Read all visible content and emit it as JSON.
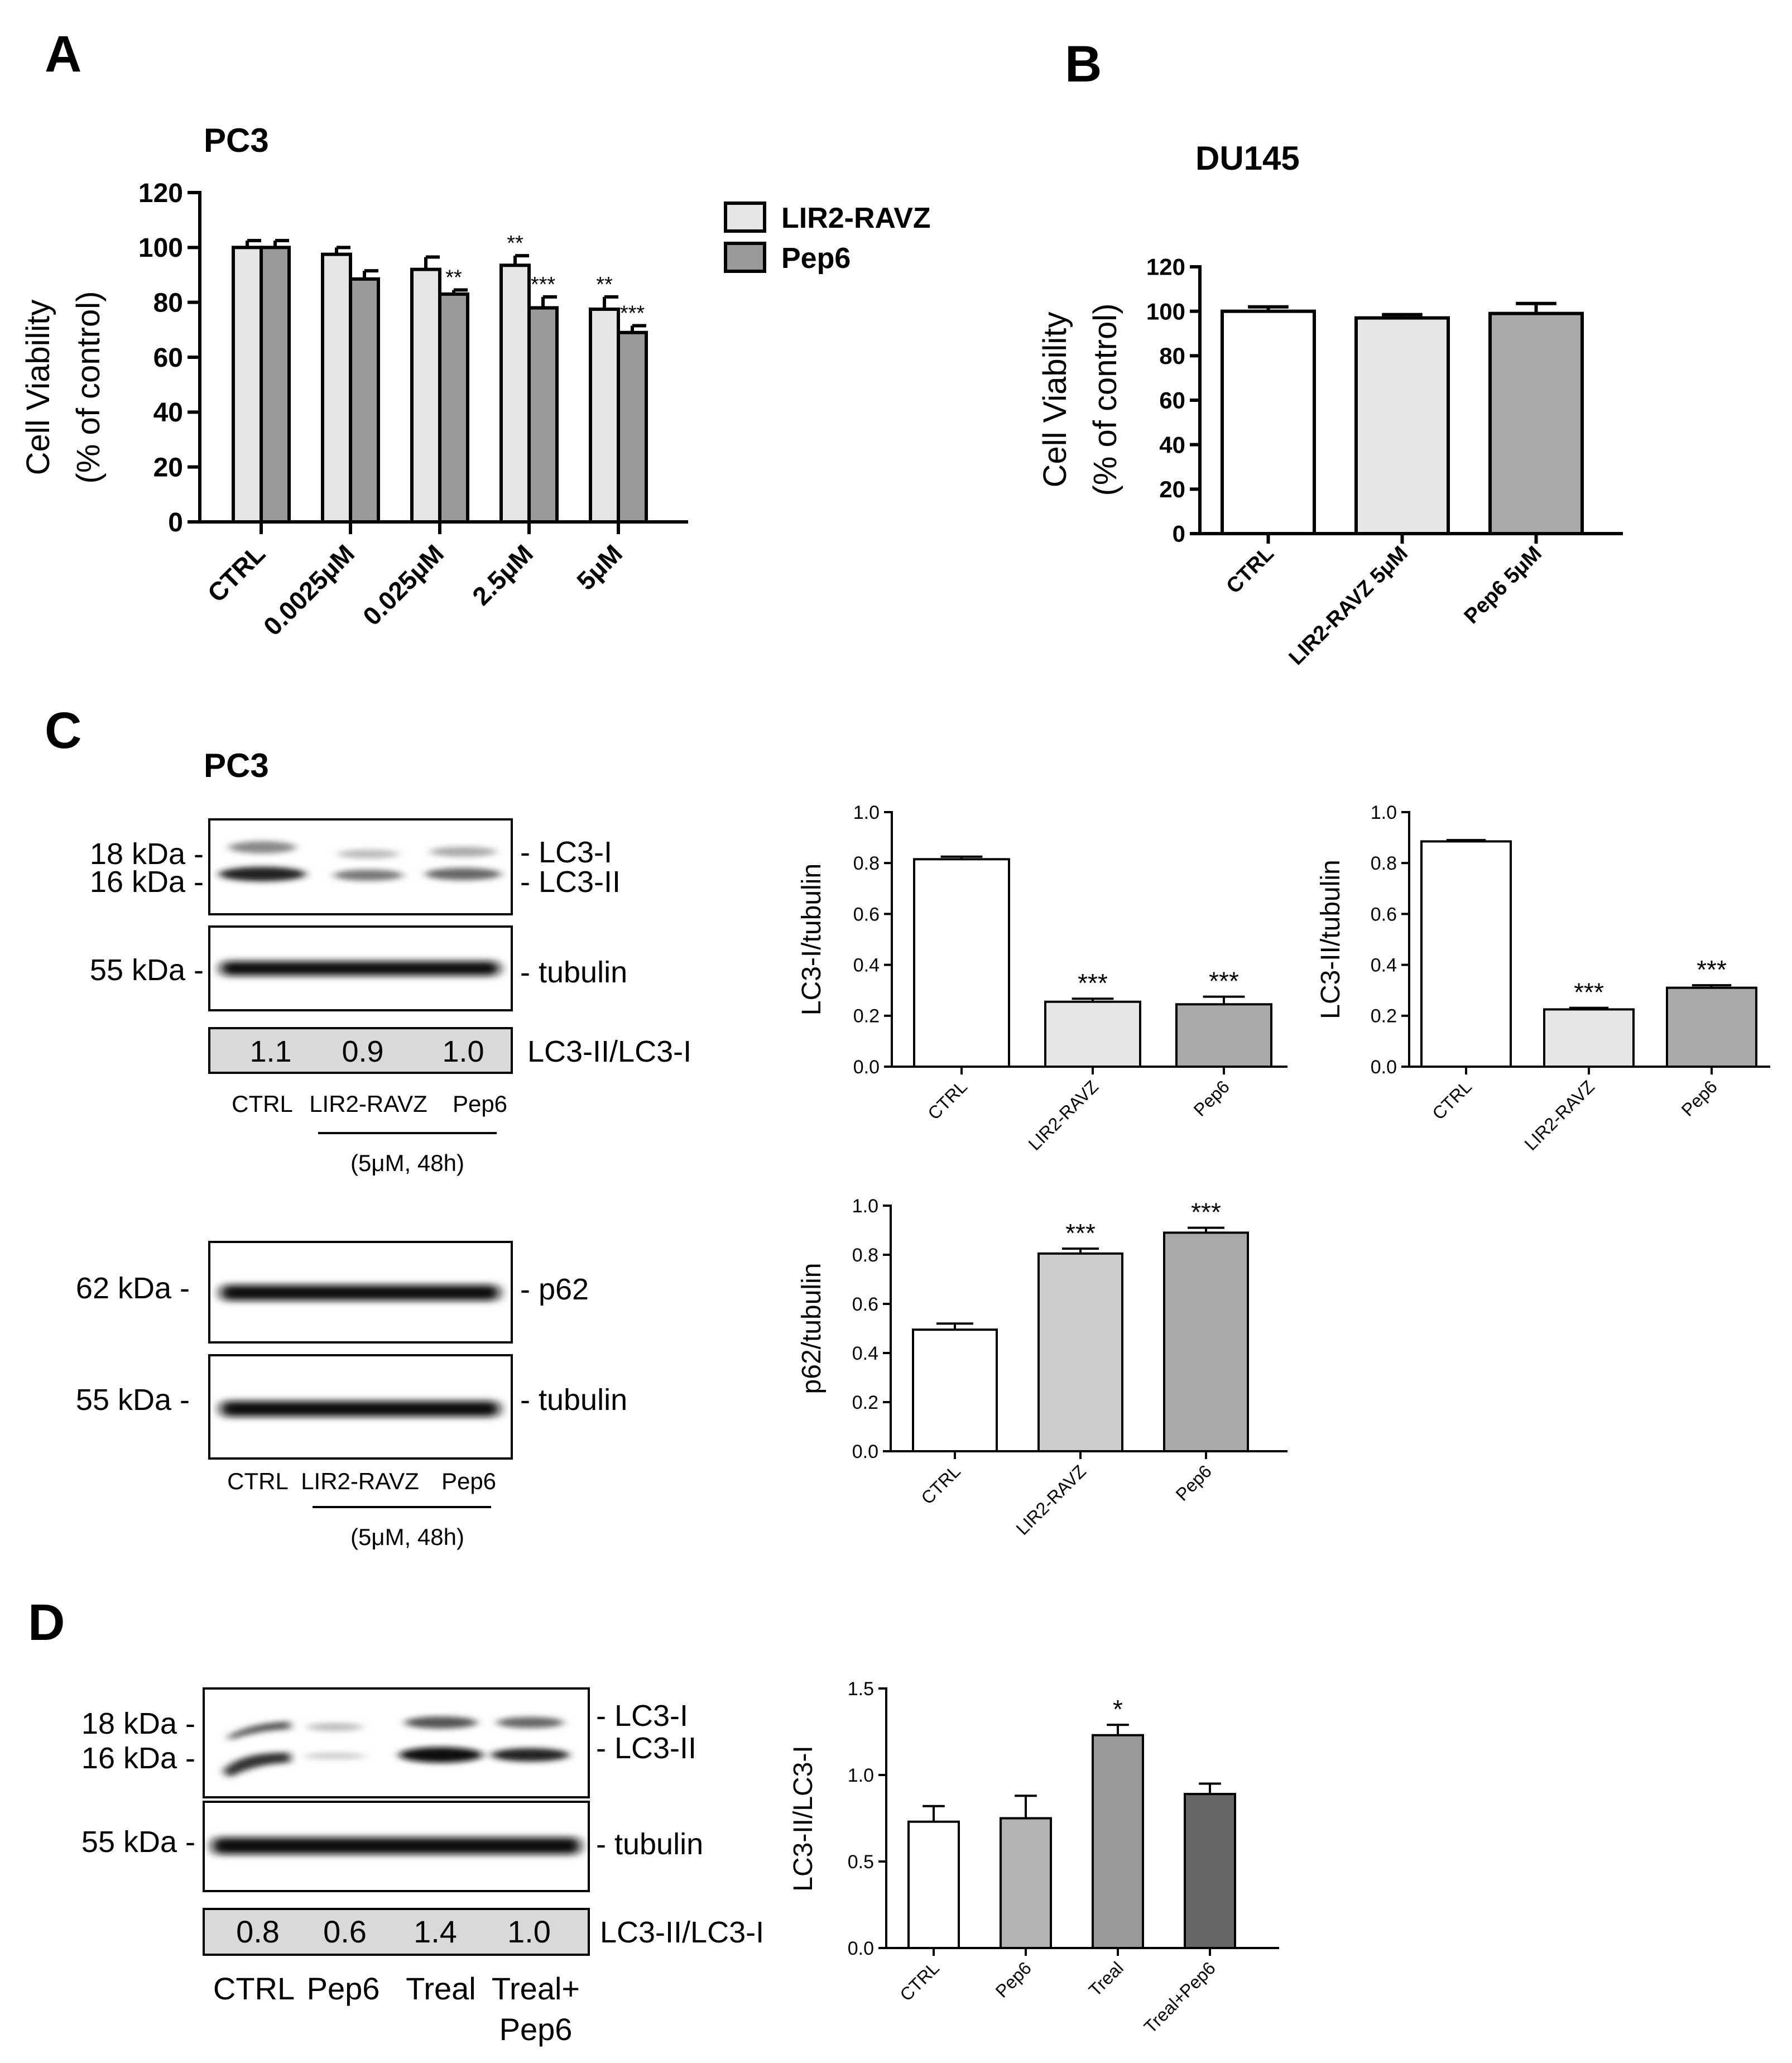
{
  "panels": {
    "A": {
      "letter": "A",
      "cell_line": "PC3",
      "ylabel_line1": "Cell Viability",
      "ylabel_line2": "(% of control)",
      "legend": [
        {
          "label": "LIR2-RAVZ",
          "color": "#e6e6e6"
        },
        {
          "label": "Pep6",
          "color": "#999999"
        }
      ]
    },
    "B": {
      "letter": "B",
      "cell_line": "DU145",
      "ylabel_line1": "Cell Viability",
      "ylabel_line2": "(% of control)"
    },
    "C": {
      "letter": "C",
      "cell_line": "PC3",
      "blot1": {
        "markers": [
          "18 kDa -",
          "16 kDa -",
          "55 kDa -"
        ],
        "bands": [
          "- LC3-I",
          "- LC3-II",
          "- tubulin"
        ],
        "ratio_values": [
          "1.1",
          "0.9",
          "1.0"
        ],
        "ratio_label": "LC3-II/LC3-I",
        "lanes": [
          "CTRL",
          "LIR2-RAVZ",
          "Pep6"
        ],
        "treatment": "(5μM, 48h)"
      },
      "blot2": {
        "markers": [
          "62 kDa -",
          "55 kDa -"
        ],
        "bands": [
          "- p62",
          "- tubulin"
        ],
        "lanes": [
          "CTRL",
          "LIR2-RAVZ",
          "Pep6"
        ],
        "treatment": "(5μM, 48h)"
      }
    },
    "D": {
      "letter": "D",
      "blot": {
        "markers": [
          "18 kDa -",
          "16 kDa -",
          "55 kDa -"
        ],
        "bands": [
          "- LC3-I",
          "- LC3-II",
          "- tubulin"
        ],
        "ratio_values": [
          "0.8",
          "0.6",
          "1.4",
          "1.0"
        ],
        "ratio_label": "LC3-II/LC3-I",
        "lanes": [
          "CTRL",
          "Pep6",
          "Treal",
          "Treal+",
          "Pep6"
        ]
      }
    }
  },
  "chart_data": [
    {
      "id": "A",
      "type": "bar",
      "title": "PC3",
      "ylabel": "Cell Viability (% of control)",
      "categories": [
        "CTRL",
        "0.0025μM",
        "0.025μM",
        "2.5μM",
        "5μM"
      ],
      "series": [
        {
          "name": "LIR2-RAVZ",
          "values": [
            100,
            97.5,
            92,
            93.5,
            77.5
          ],
          "errors": [
            2.5,
            2.5,
            4.5,
            3.5,
            4.5
          ],
          "significance": [
            "",
            "",
            "",
            "**",
            "**"
          ],
          "color": "#e6e6e6"
        },
        {
          "name": "Pep6",
          "values": [
            100,
            88.5,
            83,
            78,
            69
          ],
          "errors": [
            2.5,
            3.0,
            1.5,
            4.0,
            2.5
          ],
          "significance": [
            "",
            "",
            "**",
            "***",
            "***"
          ],
          "color": "#999999"
        }
      ],
      "ylim": [
        0,
        120
      ],
      "yticks": [
        0,
        20,
        40,
        60,
        80,
        100,
        120
      ],
      "legend": "right"
    },
    {
      "id": "B",
      "type": "bar",
      "title": "DU145",
      "ylabel": "Cell Viability (% of control)",
      "categories": [
        "CTRL",
        "LIR2-RAVZ 5μM",
        "Pep6 5μM"
      ],
      "values": [
        100,
        97,
        99
      ],
      "errors": [
        2,
        1.5,
        4.5
      ],
      "colors": [
        "#ffffff",
        "#e6e6e6",
        "#aaaaaa"
      ],
      "ylim": [
        0,
        120
      ],
      "yticks": [
        0,
        20,
        40,
        60,
        80,
        100,
        120
      ]
    },
    {
      "id": "C1",
      "type": "bar",
      "ylabel": "LC3-I/tubulin",
      "categories": [
        "CTRL",
        "LIR2-RAVZ",
        "Pep6"
      ],
      "values": [
        0.815,
        0.255,
        0.245
      ],
      "errors": [
        0.01,
        0.012,
        0.03
      ],
      "significance": [
        "",
        "***",
        "***"
      ],
      "colors": [
        "#ffffff",
        "#e6e6e6",
        "#aaaaaa"
      ],
      "ylim": [
        0,
        1.0
      ],
      "yticks": [
        0.0,
        0.2,
        0.4,
        0.6,
        0.8,
        1.0
      ]
    },
    {
      "id": "C2",
      "type": "bar",
      "ylabel": "LC3-II/tubulin",
      "categories": [
        "CTRL",
        "LIR2-RAVZ",
        "Pep6"
      ],
      "values": [
        0.885,
        0.225,
        0.31
      ],
      "errors": [
        0.005,
        0.006,
        0.01
      ],
      "significance": [
        "",
        "***",
        "***"
      ],
      "colors": [
        "#ffffff",
        "#e6e6e6",
        "#aaaaaa"
      ],
      "ylim": [
        0,
        1.0
      ],
      "yticks": [
        0.0,
        0.2,
        0.4,
        0.6,
        0.8,
        1.0
      ]
    },
    {
      "id": "C3",
      "type": "bar",
      "ylabel": "p62/tubulin",
      "categories": [
        "CTRL",
        "LIR2-RAVZ",
        "Pep6"
      ],
      "values": [
        0.495,
        0.805,
        0.89
      ],
      "errors": [
        0.025,
        0.02,
        0.02
      ],
      "significance": [
        "",
        "***",
        "***"
      ],
      "colors": [
        "#ffffff",
        "#cccccc",
        "#aaaaaa"
      ],
      "ylim": [
        0,
        1.0
      ],
      "yticks": [
        0.0,
        0.2,
        0.4,
        0.6,
        0.8,
        1.0
      ]
    },
    {
      "id": "D1",
      "type": "bar",
      "ylabel": "LC3-II/LC3-I",
      "categories": [
        "CTRL",
        "Pep6",
        "Treal",
        "Treal+Pep6"
      ],
      "values": [
        0.73,
        0.75,
        1.23,
        0.89
      ],
      "errors": [
        0.09,
        0.13,
        0.06,
        0.06
      ],
      "significance": [
        "",
        "",
        "*",
        ""
      ],
      "colors": [
        "#ffffff",
        "#b3b3b3",
        "#999999",
        "#666666"
      ],
      "ylim": [
        0,
        1.5
      ],
      "yticks": [
        0.0,
        0.5,
        1.0,
        1.5
      ]
    }
  ]
}
